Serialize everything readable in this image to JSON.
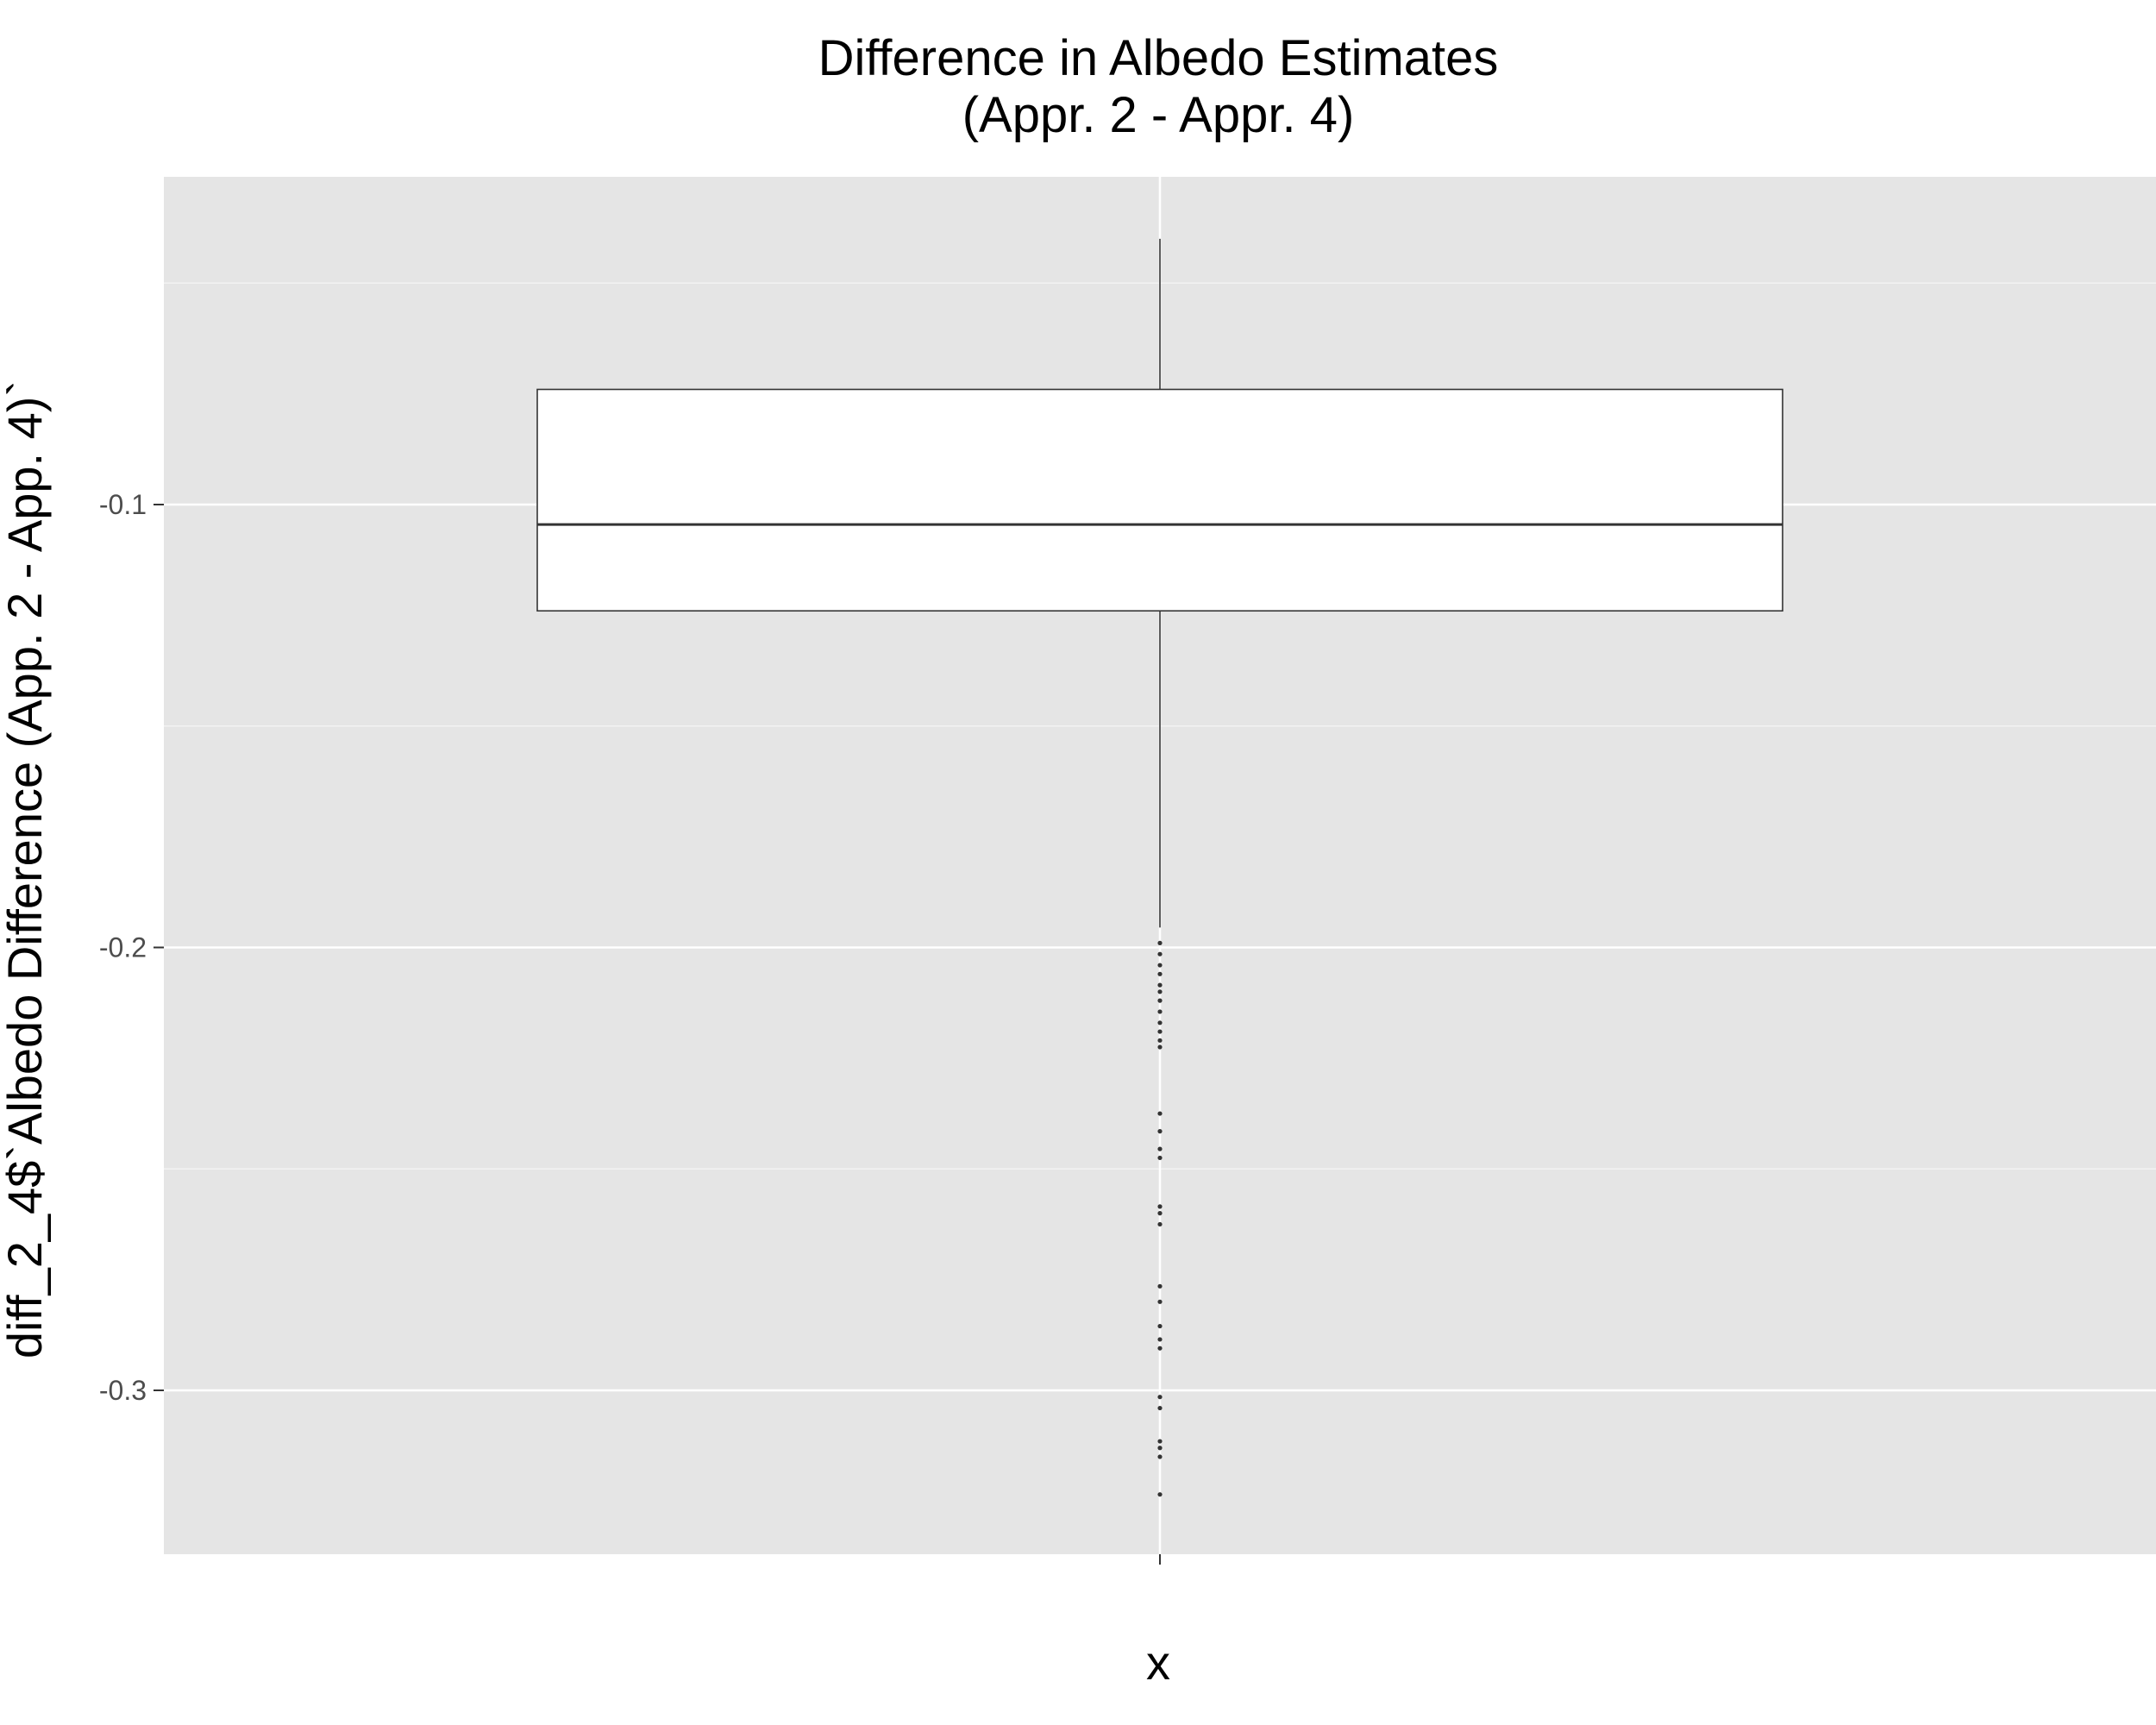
{
  "chart_data": {
    "type": "box",
    "title": [
      "Difference in Albedo Estimates",
      "(Appr. 2 - Appr. 4)"
    ],
    "xlabel": "x",
    "ylabel": "diff_2_4$`Albedo Difference (App. 2 - App. 4)`",
    "ylim": [
      -0.337,
      -0.026
    ],
    "yticks": [
      -0.1,
      -0.2,
      -0.3
    ],
    "ytick_labels": [
      "-0.1",
      "-0.2",
      "-0.3"
    ],
    "grid": true,
    "box": {
      "q1": -0.124,
      "median": -0.1045,
      "q3": -0.074,
      "whisker_low": -0.1955,
      "whisker_high": -0.04
    },
    "outliers": [
      -0.199,
      -0.2015,
      -0.204,
      -0.206,
      -0.2085,
      -0.21,
      -0.212,
      -0.2145,
      -0.217,
      -0.219,
      -0.221,
      -0.2225,
      -0.2375,
      -0.2415,
      -0.2455,
      -0.2475,
      -0.2585,
      -0.26,
      -0.2625,
      -0.2765,
      -0.28,
      -0.2855,
      -0.2885,
      -0.2905,
      -0.3015,
      -0.304,
      -0.3115,
      -0.313,
      -0.315,
      -0.3235
    ],
    "colors": {
      "panel": "#e5e5e5",
      "grid_major": "#ffffff",
      "grid_minor": "#f2f2f2",
      "box_fill": "#ffffff",
      "box_line": "#333333",
      "tick_text": "#4d4d4d"
    }
  }
}
